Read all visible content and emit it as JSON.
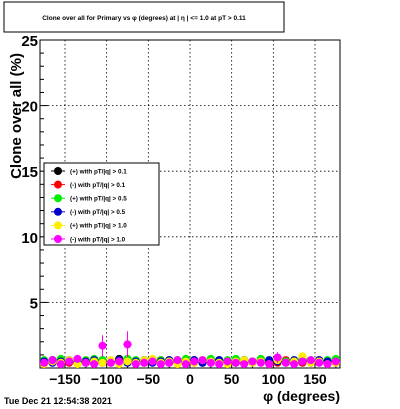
{
  "chart_data": {
    "type": "scatter",
    "title": "Clone  over all for Primary vs φ (degrees) at | η | <= 1.0 at pT > 0.11",
    "xlabel": "φ (degrees)",
    "ylabel": "Clone  over all (%)",
    "xlim": [
      -180,
      180
    ],
    "ylim": [
      0,
      25
    ],
    "x_ticks": [
      -150,
      -100,
      -50,
      0,
      50,
      100,
      150
    ],
    "x_tick_labels": [
      "−150",
      "−100",
      "−50",
      "0",
      "50",
      "100",
      "150"
    ],
    "y_ticks": [
      5,
      10,
      15,
      20,
      25
    ],
    "y_tick_labels": [
      "5",
      "10",
      "15",
      "20",
      "25"
    ],
    "grid": true,
    "legend_position": "middle-left",
    "timestamp": "Tue Dec 21 12:54:38 2021",
    "series": [
      {
        "name": "(+) with pT/|q| > 0.1",
        "color": "#000000",
        "x": [
          -175,
          -165,
          -155,
          -145,
          -135,
          -125,
          -115,
          -105,
          -95,
          -85,
          -75,
          -65,
          -55,
          -45,
          -35,
          -25,
          -15,
          -5,
          5,
          15,
          25,
          35,
          45,
          55,
          65,
          75,
          85,
          95,
          105,
          115,
          125,
          135,
          145,
          155,
          165,
          175
        ],
        "y": [
          0.5,
          0.6,
          0.4,
          0.5,
          0.6,
          0.5,
          0.4,
          0.6,
          0.5,
          0.7,
          0.5,
          0.4,
          0.6,
          0.5,
          0.4,
          0.6,
          0.5,
          0.5,
          0.6,
          0.4,
          0.5,
          0.6,
          0.5,
          0.4,
          0.6,
          0.5,
          0.5,
          0.4,
          0.6,
          0.5,
          0.4,
          0.6,
          0.5,
          0.5,
          0.4,
          0.6
        ]
      },
      {
        "name": "(-) with pT/|q| > 0.1",
        "color": "#ff0000",
        "x": [
          -175,
          -165,
          -155,
          -145,
          -135,
          -125,
          -115,
          -105,
          -95,
          -85,
          -75,
          -65,
          -55,
          -45,
          -35,
          -25,
          -15,
          -5,
          5,
          15,
          25,
          35,
          45,
          55,
          65,
          75,
          85,
          95,
          105,
          115,
          125,
          135,
          145,
          155,
          165,
          175
        ],
        "y": [
          0.4,
          0.5,
          0.6,
          0.4,
          0.5,
          0.4,
          0.6,
          0.5,
          0.4,
          0.5,
          0.6,
          0.5,
          0.4,
          0.5,
          0.6,
          0.4,
          0.5,
          0.6,
          0.4,
          0.5,
          0.6,
          0.4,
          0.5,
          0.6,
          0.4,
          0.5,
          0.6,
          0.5,
          0.4,
          0.6,
          0.5,
          0.4,
          0.5,
          0.6,
          0.5,
          0.4
        ]
      },
      {
        "name": "(+) with pT/|q| > 0.5",
        "color": "#00ee00",
        "x": [
          -175,
          -165,
          -155,
          -145,
          -135,
          -125,
          -115,
          -105,
          -95,
          -85,
          -75,
          -65,
          -55,
          -45,
          -35,
          -25,
          -15,
          -5,
          5,
          15,
          25,
          35,
          45,
          55,
          65,
          75,
          85,
          95,
          105,
          115,
          125,
          135,
          145,
          155,
          165,
          175
        ],
        "y": [
          0.6,
          0.5,
          0.7,
          0.6,
          0.5,
          0.6,
          0.7,
          0.6,
          0.5,
          0.6,
          0.7,
          0.6,
          0.5,
          0.7,
          0.6,
          0.5,
          0.6,
          0.7,
          0.5,
          0.6,
          0.7,
          0.5,
          0.6,
          0.7,
          0.6,
          0.5,
          0.7,
          0.6,
          0.8,
          0.5,
          0.6,
          0.7,
          0.6,
          0.5,
          0.6,
          0.7
        ]
      },
      {
        "name": "(-) with pT/|q| > 0.5",
        "color": "#0000cc",
        "x": [
          -175,
          -165,
          -155,
          -145,
          -135,
          -125,
          -115,
          -105,
          -95,
          -85,
          -75,
          -65,
          -55,
          -45,
          -35,
          -25,
          -15,
          -5,
          5,
          15,
          25,
          35,
          45,
          55,
          65,
          75,
          85,
          95,
          105,
          115,
          125,
          135,
          145,
          155,
          165,
          175
        ],
        "y": [
          0.5,
          0.4,
          0.5,
          0.6,
          0.4,
          0.5,
          0.6,
          0.4,
          0.5,
          0.6,
          0.4,
          0.5,
          0.6,
          0.4,
          0.5,
          0.6,
          0.4,
          0.5,
          0.6,
          0.4,
          0.5,
          0.6,
          0.4,
          0.5,
          0.6,
          0.4,
          0.5,
          0.6,
          0.5,
          0.4,
          0.6,
          0.5,
          0.4,
          0.6,
          0.5,
          0.4
        ]
      },
      {
        "name": "(+) with pT/|q| > 1.0",
        "color": "#ffee00",
        "x": [
          -175,
          -165,
          -155,
          -145,
          -135,
          -125,
          -115,
          -105,
          -95,
          -85,
          -75,
          -65,
          -55,
          -45,
          -35,
          -25,
          -15,
          -5,
          5,
          15,
          25,
          35,
          45,
          55,
          65,
          75,
          85,
          95,
          105,
          115,
          125,
          135,
          145,
          155,
          165,
          175
        ],
        "y": [
          0.3,
          0.5,
          0.4,
          0.6,
          0.3,
          0.4,
          0.5,
          0.4,
          0.6,
          0.3,
          0.5,
          0.4,
          0.6,
          0.7,
          0.4,
          0.5,
          0.3,
          0.5,
          0.4,
          0.6,
          0.5,
          0.4,
          0.3,
          0.5,
          0.6,
          0.4,
          0.5,
          0.3,
          0.6,
          0.4,
          0.5,
          0.9,
          0.4,
          0.5,
          0.3,
          0.4
        ]
      },
      {
        "name": "(-) with pT/|q| > 1.0",
        "color": "#ff00ff",
        "x": [
          -175,
          -165,
          -155,
          -145,
          -135,
          -125,
          -115,
          -105,
          -95,
          -85,
          -75,
          -65,
          -55,
          -45,
          -35,
          -25,
          -15,
          -5,
          5,
          15,
          25,
          35,
          45,
          55,
          65,
          75,
          85,
          95,
          105,
          115,
          125,
          135,
          145,
          155,
          165,
          175
        ],
        "y": [
          0.4,
          0.6,
          0.3,
          0.5,
          0.7,
          0.4,
          0.3,
          1.7,
          0.4,
          0.5,
          1.8,
          0.3,
          0.4,
          0.5,
          0.3,
          0.4,
          0.6,
          0.3,
          0.5,
          0.6,
          0.4,
          0.3,
          0.5,
          0.4,
          0.3,
          0.5,
          0.4,
          0.3,
          0.8,
          0.4,
          0.3,
          0.5,
          0.6,
          0.4,
          0.3,
          0.5
        ],
        "yerr": [
          0.3,
          0.3,
          0.2,
          0.3,
          0.3,
          0.2,
          0.2,
          0.8,
          0.3,
          0.3,
          1.0,
          0.2,
          0.3,
          0.3,
          0.2,
          0.3,
          0.3,
          0.2,
          0.3,
          0.3,
          0.2,
          0.2,
          0.3,
          0.3,
          0.2,
          0.3,
          0.3,
          0.2,
          0.4,
          0.3,
          0.2,
          0.3,
          0.3,
          0.3,
          0.2,
          0.3
        ]
      }
    ]
  }
}
